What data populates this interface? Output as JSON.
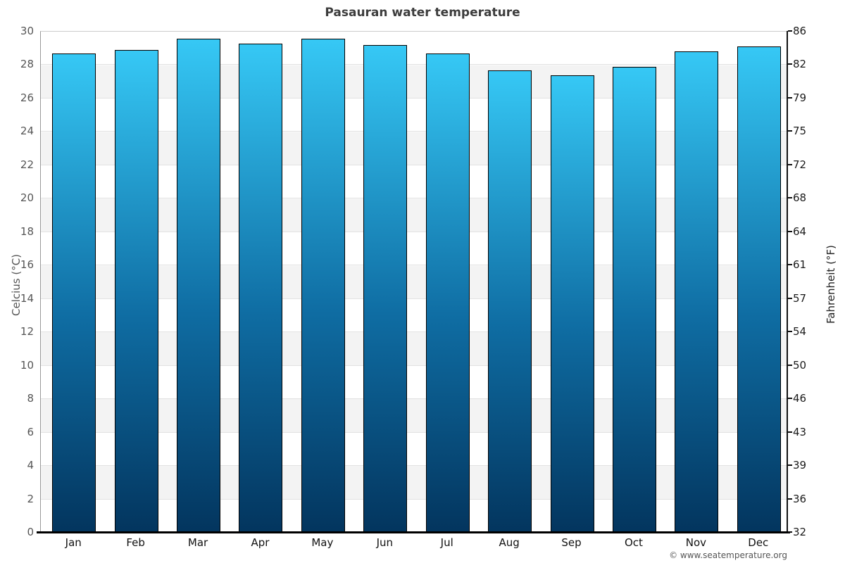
{
  "chart_data": {
    "type": "bar",
    "title": "Pasauran water temperature",
    "ylabel_left": "Celcius (°C)",
    "ylabel_right": "Fahrenheit (°F)",
    "categories": [
      "Jan",
      "Feb",
      "Mar",
      "Apr",
      "May",
      "Jun",
      "Jul",
      "Aug",
      "Sep",
      "Oct",
      "Nov",
      "Dec"
    ],
    "values": [
      28.7,
      28.9,
      29.6,
      29.3,
      29.6,
      29.2,
      28.7,
      27.7,
      27.4,
      27.9,
      28.8,
      29.1
    ],
    "unit": "°C",
    "ylim": [
      0,
      30
    ],
    "celsius_ticks": [
      0,
      2,
      4,
      6,
      8,
      10,
      12,
      14,
      16,
      18,
      20,
      22,
      24,
      26,
      28,
      30
    ],
    "fahrenheit_ticks": [
      32,
      36,
      39,
      43,
      46,
      50,
      54,
      57,
      61,
      64,
      68,
      72,
      75,
      79,
      82,
      86
    ],
    "grid": true,
    "legend": "none",
    "bar_gradient_top": "#36c8f5",
    "bar_gradient_bottom": "#03355e",
    "stripe_color": "#f3f3f3",
    "copyright": "© www.seatemperature.org"
  }
}
